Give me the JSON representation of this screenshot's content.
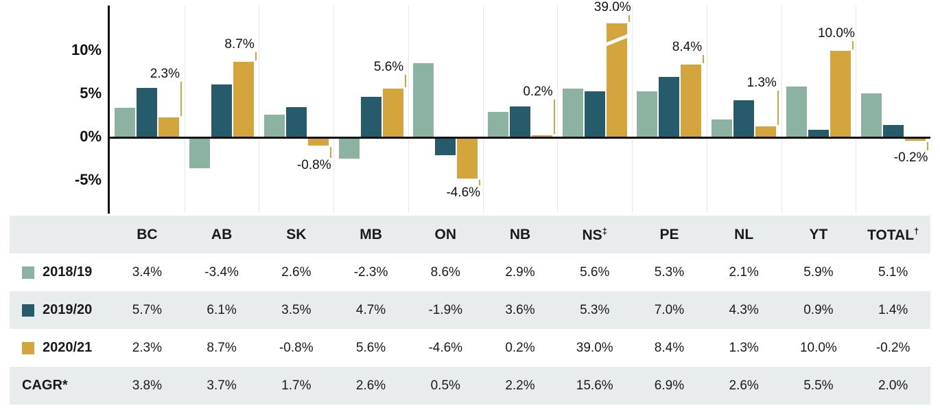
{
  "colors": {
    "series_2018_19": "#8CB3A2",
    "series_2019_20": "#255B6B",
    "series_2020_21": "#D5A53D",
    "table_band": "#E9ECED",
    "axis": "#111111",
    "gridline": "#E7E9E9"
  },
  "chart_data": {
    "type": "bar",
    "title": "",
    "xlabel": "",
    "ylabel": "",
    "categories": [
      "BC",
      "AB",
      "SK",
      "MB",
      "ON",
      "NB",
      "NS",
      "PE",
      "NL",
      "YT",
      "TOTAL"
    ],
    "series": [
      {
        "name": "2018/19",
        "color": "#8CB3A2",
        "values": [
          3.4,
          -3.4,
          2.6,
          -2.3,
          8.6,
          2.9,
          5.6,
          5.3,
          2.1,
          5.9,
          5.1
        ]
      },
      {
        "name": "2019/20",
        "color": "#255B6B",
        "values": [
          5.7,
          6.1,
          3.5,
          4.7,
          -1.9,
          3.6,
          5.3,
          7.0,
          4.3,
          0.9,
          1.4
        ]
      },
      {
        "name": "2020/21",
        "color": "#D5A53D",
        "values": [
          2.3,
          8.7,
          -0.8,
          5.6,
          -4.6,
          0.2,
          39.0,
          8.4,
          1.3,
          10.0,
          -0.2
        ]
      }
    ],
    "annotations": [
      "2.3%",
      "8.7%",
      "-0.8%",
      "5.6%",
      "-4.6%",
      "0.2%",
      "39.0%",
      "8.4%",
      "1.3%",
      "10.0%",
      "-0.2%"
    ],
    "annotated_series": "2020/21",
    "yticks": [
      {
        "label": "10%",
        "value": 10
      },
      {
        "label": "5%",
        "value": 5
      },
      {
        "label": "0%",
        "value": 0
      },
      {
        "label": "-5%",
        "value": -5
      }
    ],
    "ylim": [
      -8,
      15
    ],
    "clipped_bar": {
      "category": "NS",
      "series": "2020/21",
      "value": 39.0,
      "shown_with_axis_break": true
    },
    "grid": "vertical-light",
    "legend_position": "table-left-column"
  },
  "table": {
    "corner_label": "",
    "header": [
      {
        "text": "BC",
        "sup": ""
      },
      {
        "text": "AB",
        "sup": ""
      },
      {
        "text": "SK",
        "sup": ""
      },
      {
        "text": "MB",
        "sup": ""
      },
      {
        "text": "ON",
        "sup": ""
      },
      {
        "text": "NB",
        "sup": ""
      },
      {
        "text": "NS",
        "sup": "‡"
      },
      {
        "text": "PE",
        "sup": ""
      },
      {
        "text": "NL",
        "sup": ""
      },
      {
        "text": "YT",
        "sup": ""
      },
      {
        "text": "TOTAL",
        "sup": "†"
      }
    ],
    "rows": [
      {
        "label": "2018/19",
        "swatch": "#8CB3A2",
        "values": [
          "3.4%",
          "-3.4%",
          "2.6%",
          "-2.3%",
          "8.6%",
          "2.9%",
          "5.6%",
          "5.3%",
          "2.1%",
          "5.9%",
          "5.1%"
        ]
      },
      {
        "label": "2019/20",
        "swatch": "#255B6B",
        "values": [
          "5.7%",
          "6.1%",
          "3.5%",
          "4.7%",
          "-1.9%",
          "3.6%",
          "5.3%",
          "7.0%",
          "4.3%",
          "0.9%",
          "1.4%"
        ]
      },
      {
        "label": "2020/21",
        "swatch": "#D5A53D",
        "values": [
          "2.3%",
          "8.7%",
          "-0.8%",
          "5.6%",
          "-4.6%",
          "0.2%",
          "39.0%",
          "8.4%",
          "1.3%",
          "10.0%",
          "-0.2%"
        ]
      },
      {
        "label": "CAGR*",
        "swatch": null,
        "values": [
          "3.8%",
          "3.7%",
          "1.7%",
          "2.6%",
          "0.5%",
          "2.2%",
          "15.6%",
          "6.9%",
          "2.6%",
          "5.5%",
          "2.0%"
        ]
      }
    ]
  }
}
